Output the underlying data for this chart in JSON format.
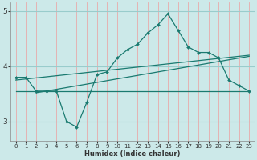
{
  "title": "",
  "xlabel": "Humidex (Indice chaleur)",
  "x_data": [
    0,
    1,
    2,
    3,
    4,
    5,
    6,
    7,
    8,
    9,
    10,
    11,
    12,
    13,
    14,
    15,
    16,
    17,
    18,
    19,
    20,
    21,
    22,
    23
  ],
  "y_main": [
    3.8,
    3.8,
    3.55,
    3.55,
    3.55,
    3.0,
    2.9,
    3.35,
    3.85,
    3.9,
    4.15,
    4.3,
    4.4,
    4.6,
    4.75,
    4.95,
    4.65,
    4.35,
    4.25,
    4.25,
    4.15,
    3.75,
    3.65,
    3.55
  ],
  "line1_x": [
    0,
    23
  ],
  "line1_y": [
    3.55,
    3.55
  ],
  "line2_x": [
    0,
    23
  ],
  "line2_y": [
    3.75,
    4.2
  ],
  "line3_x": [
    2,
    23
  ],
  "line3_y": [
    3.52,
    4.18
  ],
  "ylim": [
    2.65,
    5.15
  ],
  "xlim": [
    -0.5,
    23.5
  ],
  "yticks": [
    3,
    4,
    5
  ],
  "xticks": [
    0,
    1,
    2,
    3,
    4,
    5,
    6,
    7,
    8,
    9,
    10,
    11,
    12,
    13,
    14,
    15,
    16,
    17,
    18,
    19,
    20,
    21,
    22,
    23
  ],
  "bg_color": "#cce9e9",
  "vgrid_color": "#e8aaaa",
  "hgrid_color": "#99cccc",
  "line_color": "#1a7a70",
  "marker_color": "#1a7a70",
  "font_color": "#333333",
  "figsize": [
    3.2,
    2.0
  ],
  "dpi": 100
}
